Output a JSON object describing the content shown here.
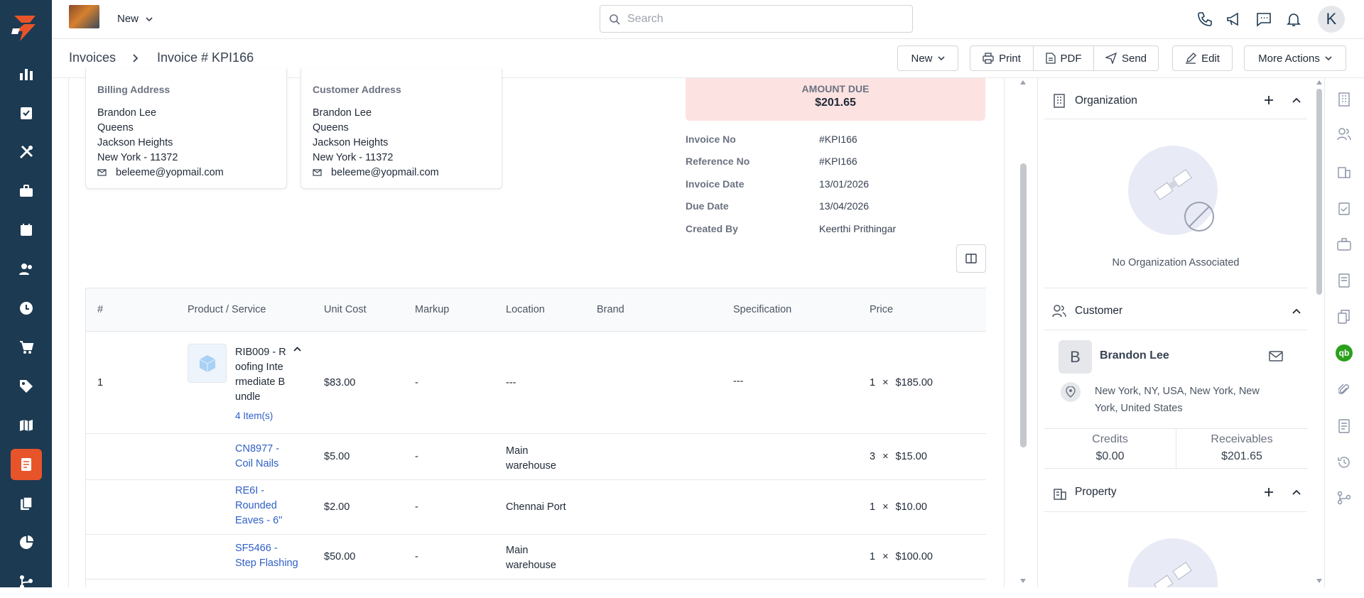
{
  "topbar": {
    "new_label": "New",
    "search_placeholder": "Search",
    "avatar_letter": "K"
  },
  "breadcrumb": {
    "root": "Invoices",
    "current": "Invoice # KPI166"
  },
  "actions": {
    "new": "New",
    "print": "Print",
    "pdf": "PDF",
    "send": "Send",
    "edit": "Edit",
    "more": "More Actions"
  },
  "billing": {
    "title": "Billing Address",
    "lines": [
      "Brandon Lee",
      "Queens",
      "Jackson Heights",
      "New York - 11372"
    ],
    "email": "beleeme@yopmail.com"
  },
  "customer_addr": {
    "title": "Customer Address",
    "lines": [
      "Brandon Lee",
      "Queens",
      "Jackson Heights",
      "New York - 11372"
    ],
    "email": "beleeme@yopmail.com"
  },
  "amount_due": {
    "label": "AMOUNT DUE",
    "value": "$201.65"
  },
  "details": [
    {
      "label": "Invoice No",
      "value": "#KPI166"
    },
    {
      "label": "Reference No",
      "value": "#KPI166"
    },
    {
      "label": "Invoice Date",
      "value": "13/01/2026"
    },
    {
      "label": "Due Date",
      "value": "13/04/2026"
    },
    {
      "label": "Created By",
      "value": "Keerthi Prithingar"
    }
  ],
  "table": {
    "headers": [
      "#",
      "Product / Service",
      "Unit Cost",
      "Markup",
      "Location",
      "Brand",
      "Specification",
      "Price"
    ],
    "bundle": {
      "num": "1",
      "name_lines": [
        "RIB009 - R",
        "oofing Inte",
        "rmediate B",
        "undle"
      ],
      "items_link": "4 Item(s)",
      "unit_cost": "$83.00",
      "markup": "-",
      "location": "---",
      "spec": "---",
      "qty": "1",
      "times": "×",
      "price": "$185.00"
    },
    "rows": [
      {
        "name_lines": [
          "CN8977 -",
          "Coil Nails"
        ],
        "unit_cost": "$5.00",
        "markup": "-",
        "location_lines": [
          "Main",
          "warehouse"
        ],
        "qty": "3",
        "times": "×",
        "price": "$15.00"
      },
      {
        "name_lines": [
          "RE6I -",
          "Rounded",
          "Eaves - 6\""
        ],
        "unit_cost": "$2.00",
        "markup": "-",
        "location_lines": [
          "Chennai Port"
        ],
        "qty": "1",
        "times": "×",
        "price": "$10.00"
      },
      {
        "name_lines": [
          "SF5466 -",
          "Step Flashing"
        ],
        "unit_cost": "$50.00",
        "markup": "-",
        "location_lines": [
          "Main",
          "warehouse"
        ],
        "qty": "1",
        "times": "×",
        "price": "$100.00"
      }
    ]
  },
  "panel": {
    "organization": {
      "title": "Organization",
      "empty": "No Organization Associated"
    },
    "customer": {
      "title": "Customer",
      "initial": "B",
      "name": "Brandon Lee",
      "address_lines": [
        "New York, NY, USA, New York, New",
        "York, United States"
      ],
      "credits_label": "Credits",
      "credits_value": "$0.00",
      "receivables_label": "Receivables",
      "receivables_value": "$201.65"
    },
    "property": {
      "title": "Property"
    }
  },
  "colors": {
    "nav_bg": "#1c3a52",
    "accent": "#e8542a",
    "amount_due_bg": "#fde2e2",
    "link": "#2e5fc7",
    "quickbooks": "#2ca01c"
  }
}
